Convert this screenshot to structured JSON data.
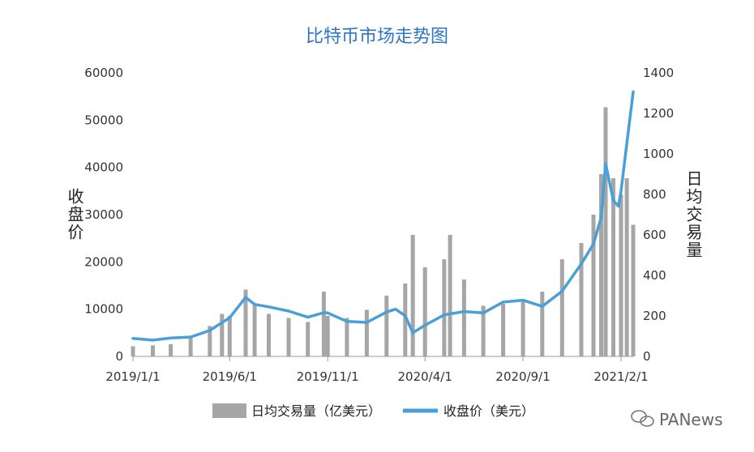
{
  "chart_data": {
    "type": "bar+line",
    "title": "比特币市场走势图",
    "left_axis_label": "收盘价",
    "right_axis_label": "日均交易量",
    "left_ylim": [
      0,
      60000
    ],
    "right_ylim": [
      0,
      1400
    ],
    "left_ticks": [
      "0",
      "10000",
      "20000",
      "30000",
      "40000",
      "50000",
      "60000"
    ],
    "right_ticks": [
      "0",
      "200",
      "400",
      "600",
      "800",
      "1000",
      "1200",
      "1400"
    ],
    "x_ticks": [
      "2019/1/1",
      "2019/6/1",
      "2019/11/1",
      "2020/4/1",
      "2020/9/1",
      "2021/2/1"
    ],
    "x_range": [
      "2019-01-01",
      "2021-02-20"
    ],
    "grid": false,
    "legend_position": "bottom",
    "series": [
      {
        "name": "日均交易量（亿美元）",
        "kind": "bar",
        "axis": "right",
        "color": "#a6a6a6",
        "points": [
          [
            "2019-01-01",
            50
          ],
          [
            "2019-02-01",
            55
          ],
          [
            "2019-03-01",
            60
          ],
          [
            "2019-04-01",
            90
          ],
          [
            "2019-05-01",
            150
          ],
          [
            "2019-05-20",
            210
          ],
          [
            "2019-06-01",
            200
          ],
          [
            "2019-06-26",
            330
          ],
          [
            "2019-07-10",
            260
          ],
          [
            "2019-08-01",
            210
          ],
          [
            "2019-09-01",
            190
          ],
          [
            "2019-10-01",
            170
          ],
          [
            "2019-10-26",
            320
          ],
          [
            "2019-11-01",
            200
          ],
          [
            "2019-12-01",
            190
          ],
          [
            "2020-01-01",
            230
          ],
          [
            "2020-02-01",
            300
          ],
          [
            "2020-03-01",
            360
          ],
          [
            "2020-03-13",
            600
          ],
          [
            "2020-04-01",
            440
          ],
          [
            "2020-05-01",
            480
          ],
          [
            "2020-05-10",
            600
          ],
          [
            "2020-06-01",
            380
          ],
          [
            "2020-07-01",
            250
          ],
          [
            "2020-08-01",
            260
          ],
          [
            "2020-09-01",
            280
          ],
          [
            "2020-10-01",
            320
          ],
          [
            "2020-11-01",
            480
          ],
          [
            "2020-12-01",
            560
          ],
          [
            "2020-12-20",
            700
          ],
          [
            "2021-01-01",
            900
          ],
          [
            "2021-01-08",
            1230
          ],
          [
            "2021-01-20",
            880
          ],
          [
            "2021-02-01",
            800
          ],
          [
            "2021-02-10",
            880
          ],
          [
            "2021-02-20",
            650
          ]
        ]
      },
      {
        "name": "收盘价（美元）",
        "kind": "line",
        "axis": "left",
        "color": "#4a9fd8",
        "points": [
          [
            "2019-01-01",
            3800
          ],
          [
            "2019-02-01",
            3450
          ],
          [
            "2019-03-01",
            3900
          ],
          [
            "2019-04-01",
            4100
          ],
          [
            "2019-05-01",
            5500
          ],
          [
            "2019-06-01",
            8200
          ],
          [
            "2019-06-26",
            12500
          ],
          [
            "2019-07-10",
            11000
          ],
          [
            "2019-08-01",
            10500
          ],
          [
            "2019-09-01",
            9600
          ],
          [
            "2019-10-01",
            8300
          ],
          [
            "2019-10-26",
            9250
          ],
          [
            "2019-11-01",
            9200
          ],
          [
            "2019-12-01",
            7400
          ],
          [
            "2020-01-01",
            7200
          ],
          [
            "2020-02-01",
            9400
          ],
          [
            "2020-02-15",
            10000
          ],
          [
            "2020-03-01",
            8600
          ],
          [
            "2020-03-13",
            5000
          ],
          [
            "2020-04-01",
            6600
          ],
          [
            "2020-05-01",
            8800
          ],
          [
            "2020-06-01",
            9500
          ],
          [
            "2020-07-01",
            9200
          ],
          [
            "2020-08-01",
            11500
          ],
          [
            "2020-09-01",
            11900
          ],
          [
            "2020-10-01",
            10600
          ],
          [
            "2020-11-01",
            13800
          ],
          [
            "2020-12-01",
            19600
          ],
          [
            "2020-12-20",
            23800
          ],
          [
            "2021-01-01",
            29400
          ],
          [
            "2021-01-08",
            40800
          ],
          [
            "2021-01-20",
            33000
          ],
          [
            "2021-01-28",
            31800
          ],
          [
            "2021-02-01",
            35000
          ],
          [
            "2021-02-10",
            45000
          ],
          [
            "2021-02-20",
            56000
          ]
        ]
      }
    ],
    "watermark": "PANews"
  }
}
